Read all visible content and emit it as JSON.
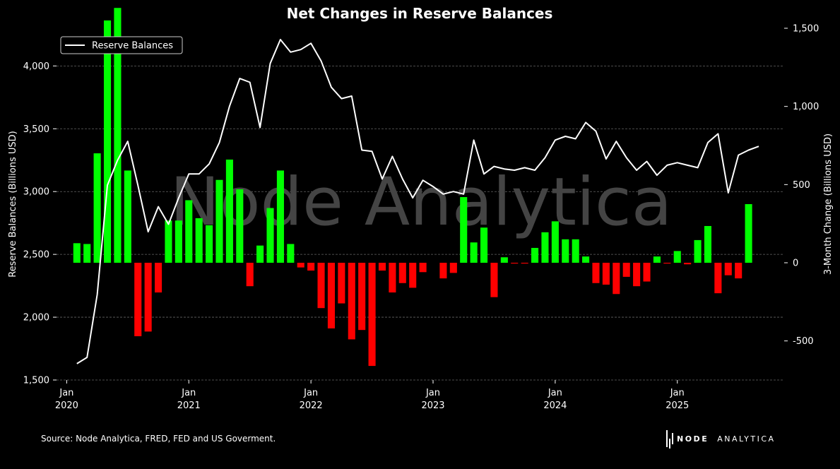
{
  "chart_data": {
    "type": "bar+line",
    "title": "Net Changes in Reserve Balances",
    "watermark": "Node Analytica",
    "ylabel_left": "Reserve Balances (Billions USD)",
    "ylabel_right": "3-Month Change (Billions USD)",
    "ylim_left": [
      1500,
      4300
    ],
    "ylim_right": [
      -750,
      1500
    ],
    "yticks_left": [
      1500,
      2000,
      2500,
      3000,
      3500,
      4000
    ],
    "yticks_left_labels": [
      "1,500",
      "2,000",
      "2,500",
      "3,000",
      "3,500",
      "4,000"
    ],
    "yticks_right": [
      -500,
      0,
      500,
      1000,
      1500
    ],
    "yticks_right_labels": [
      "-500",
      "0",
      "500",
      "1,000",
      "1,500"
    ],
    "xticks": [
      {
        "month_index": 0,
        "line1": "Jan",
        "line2": "2020"
      },
      {
        "month_index": 12,
        "line1": "Jan",
        "line2": "2021"
      },
      {
        "month_index": 24,
        "line1": "Jan",
        "line2": "2022"
      },
      {
        "month_index": 36,
        "line1": "Jan",
        "line2": "2023"
      },
      {
        "month_index": 48,
        "line1": "Jan",
        "line2": "2024"
      },
      {
        "month_index": 60,
        "line1": "Jan",
        "line2": "2025"
      }
    ],
    "x_start": "2020-01",
    "x_domain_months": [
      -1,
      70.5
    ],
    "legend": {
      "label": "Reserve Balances",
      "position": "top-left"
    },
    "colors": {
      "positive": "#00ff00",
      "negative": "#ff0000",
      "line": "#ffffff",
      "grid": "#666666",
      "watermark": "#444444"
    },
    "series": [
      {
        "name": "Reserve Balances",
        "kind": "line",
        "axis": "left",
        "start_month_index": 1,
        "values": [
          1630,
          1680,
          2180,
          3050,
          3250,
          3400,
          3050,
          2680,
          2880,
          2740,
          2950,
          3140,
          3140,
          3220,
          3390,
          3680,
          3900,
          3870,
          3510,
          4020,
          4210,
          4110,
          4130,
          4180,
          4040,
          3830,
          3740,
          3760,
          3330,
          3320,
          3100,
          3280,
          3100,
          2950,
          3090,
          3040,
          2980,
          3000,
          2980,
          3410,
          3140,
          3200,
          3180,
          3170,
          3190,
          3170,
          3270,
          3410,
          3440,
          3420,
          3550,
          3480,
          3260,
          3400,
          3270,
          3170,
          3240,
          3130,
          3210,
          3230,
          3210,
          3190,
          3390,
          3460,
          2990,
          3290,
          3330,
          3360
        ]
      },
      {
        "name": "3-Month Change",
        "kind": "bar",
        "axis": "right",
        "start_month_index": 1,
        "values": [
          125,
          120,
          700,
          1550,
          1630,
          590,
          -470,
          -440,
          -190,
          270,
          270,
          400,
          285,
          240,
          530,
          660,
          470,
          -150,
          110,
          350,
          590,
          120,
          -30,
          -50,
          -290,
          -420,
          -260,
          -490,
          -430,
          -660,
          -50,
          -190,
          -130,
          -160,
          -60,
          null,
          -100,
          -65,
          420,
          130,
          225,
          -220,
          35,
          -5,
          -5,
          95,
          195,
          265,
          150,
          150,
          40,
          -130,
          -140,
          -200,
          -90,
          -150,
          -120,
          40,
          -5,
          75,
          -10,
          145,
          235,
          -195,
          -80,
          -100,
          375
        ]
      }
    ]
  },
  "footer": {
    "source": "Source: Node Analytica, FRED, FED and US Goverment.",
    "brand_bold": "NODE",
    "brand_light": "ANALYTICA"
  }
}
